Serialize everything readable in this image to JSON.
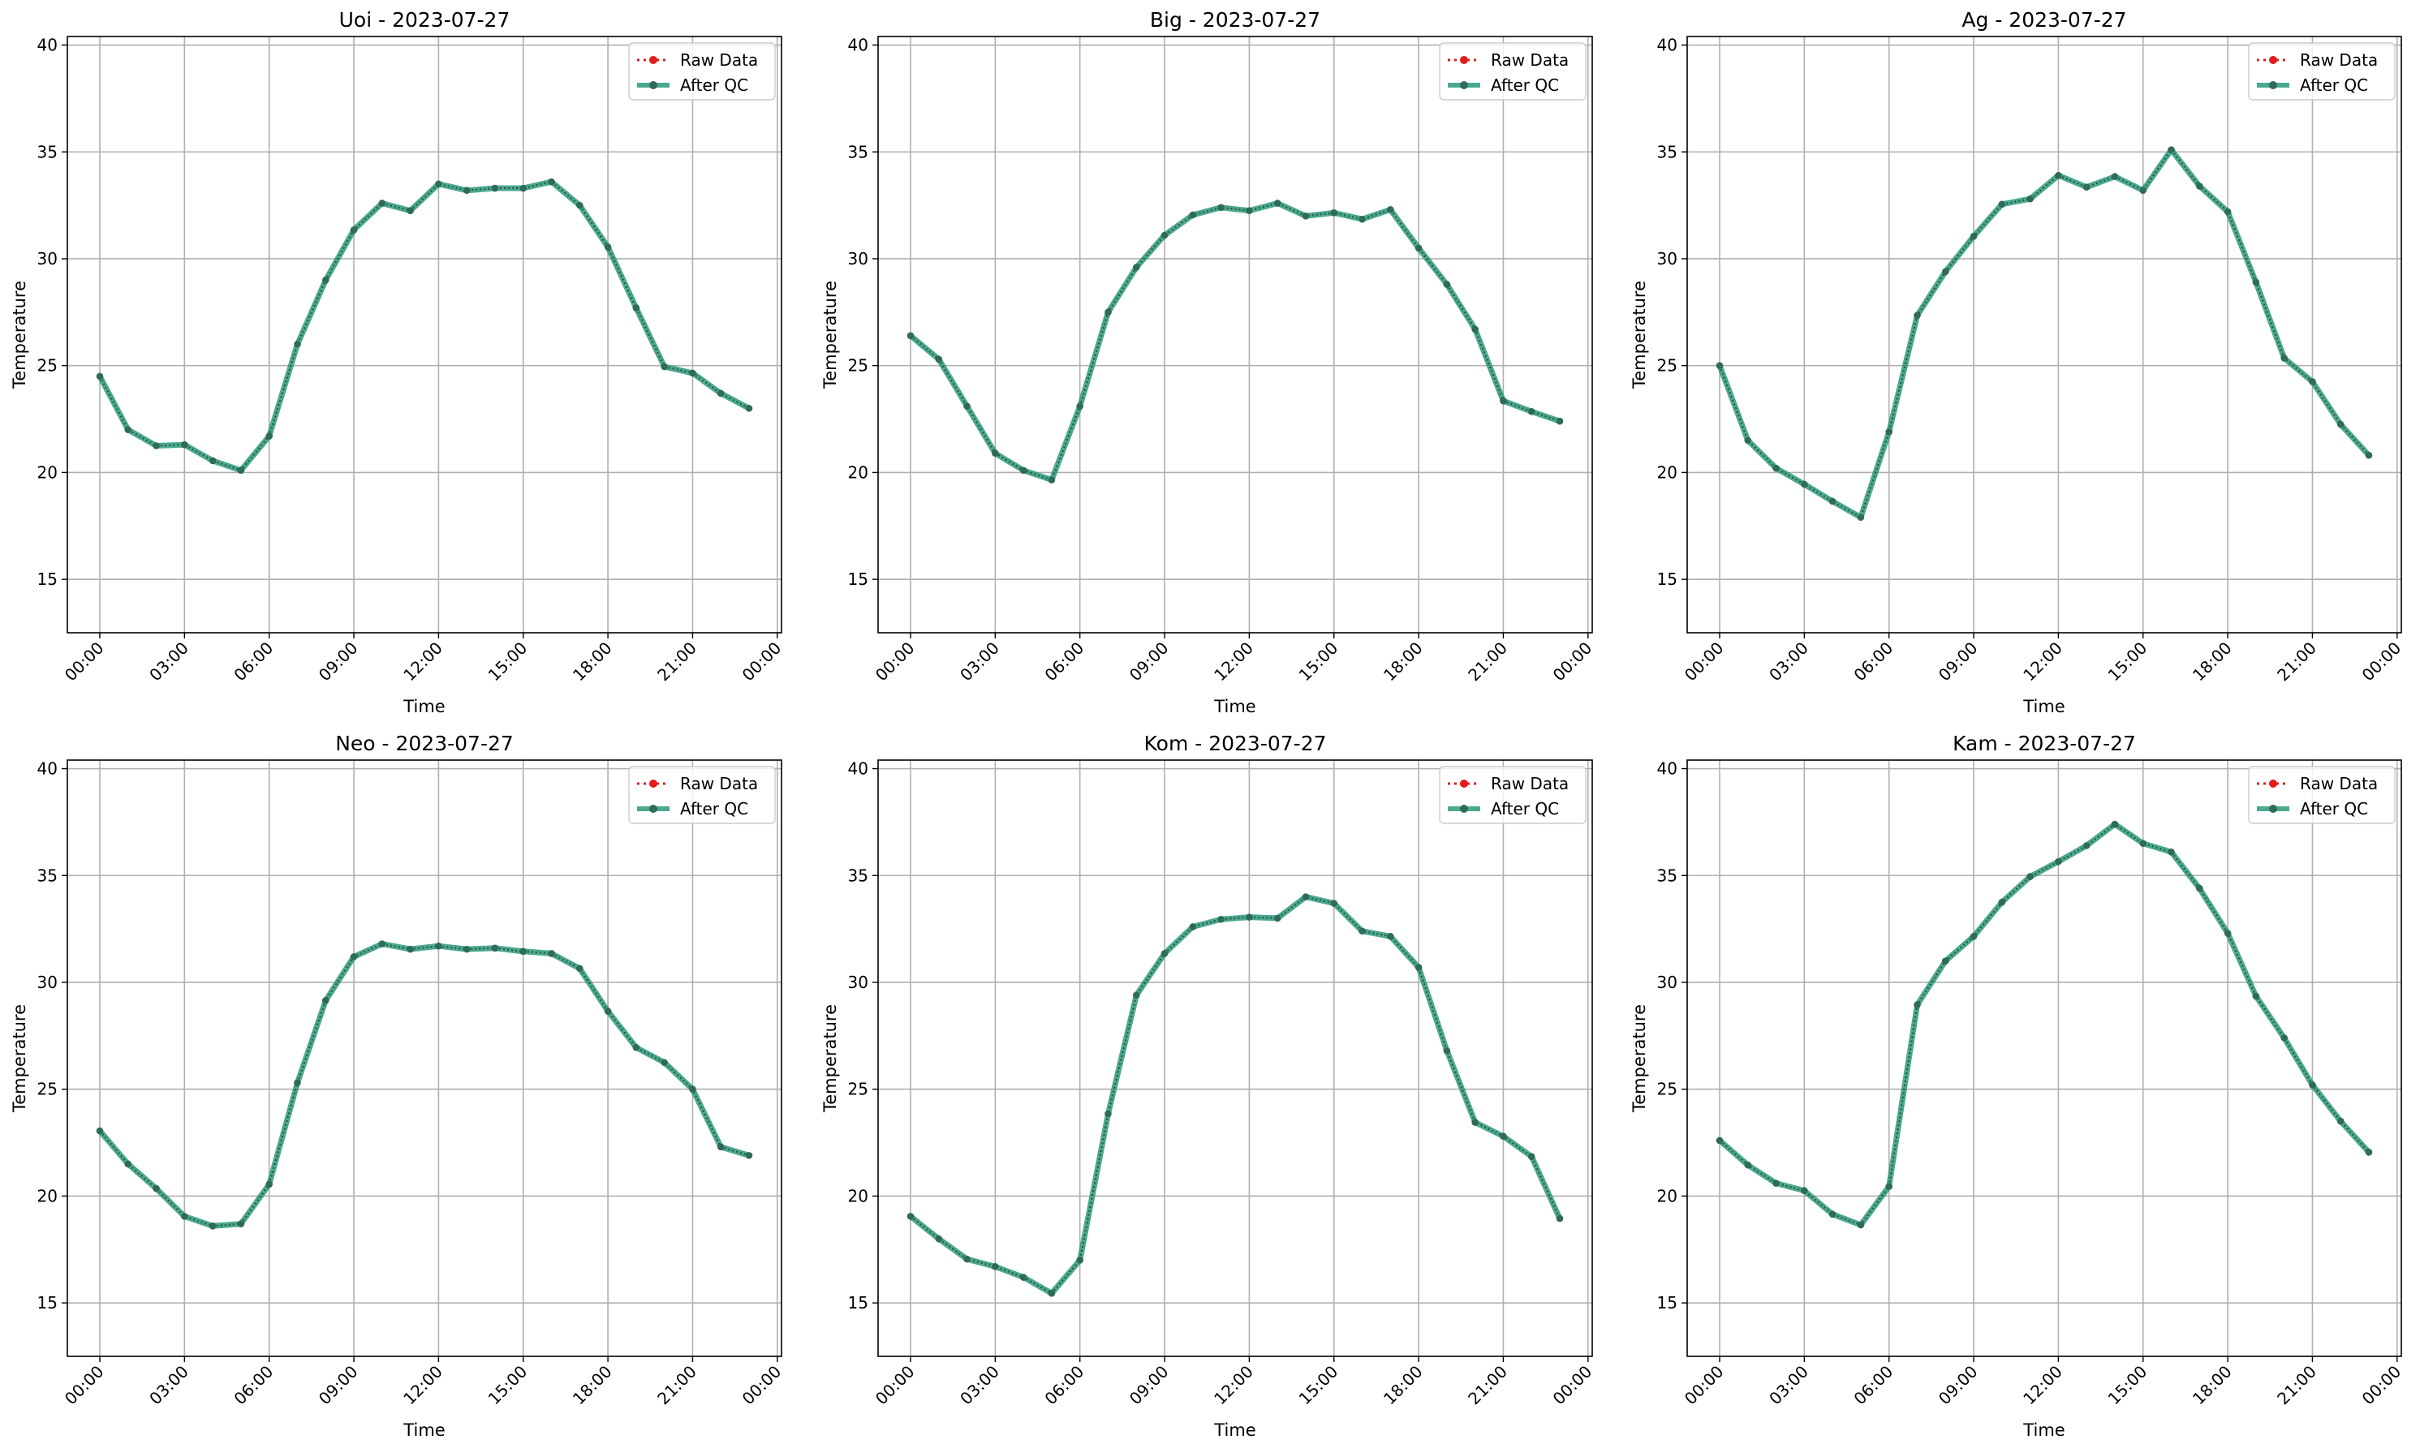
{
  "chart_data": [
    {
      "type": "line",
      "title": "Uoi - 2023-07-27",
      "xlabel": "Time",
      "ylabel": "Temperature",
      "x": [
        "00:00",
        "01:00",
        "02:00",
        "03:00",
        "04:00",
        "05:00",
        "06:00",
        "07:00",
        "08:00",
        "09:00",
        "10:00",
        "11:00",
        "12:00",
        "13:00",
        "14:00",
        "15:00",
        "16:00",
        "17:00",
        "18:00",
        "19:00",
        "20:00",
        "21:00",
        "22:00",
        "23:00"
      ],
      "xticks": [
        "00:00",
        "03:00",
        "06:00",
        "09:00",
        "12:00",
        "15:00",
        "18:00",
        "21:00",
        "00:00"
      ],
      "yticks": [
        15,
        20,
        25,
        30,
        35,
        40
      ],
      "ylim": [
        12.5,
        40.4
      ],
      "grid": true,
      "legend_position": "top-right",
      "series": [
        {
          "name": "Raw Data",
          "color": "#e41a1c",
          "values": [
            24.5,
            22.0,
            21.25,
            21.3,
            20.55,
            20.1,
            21.7,
            26.0,
            29.0,
            31.35,
            32.6,
            32.25,
            33.5,
            33.2,
            33.3,
            33.3,
            33.6,
            32.5,
            30.55,
            27.7,
            24.95,
            24.65,
            23.7,
            23.0
          ]
        },
        {
          "name": "After QC",
          "color": "#2a9a7a",
          "values": [
            24.5,
            22.0,
            21.25,
            21.3,
            20.55,
            20.1,
            21.7,
            26.0,
            29.0,
            31.35,
            32.6,
            32.25,
            33.5,
            33.2,
            33.3,
            33.3,
            33.6,
            32.5,
            30.55,
            27.7,
            24.95,
            24.65,
            23.7,
            23.0
          ]
        }
      ]
    },
    {
      "type": "line",
      "title": "Big - 2023-07-27",
      "xlabel": "Time",
      "ylabel": "Temperature",
      "x": [
        "00:00",
        "01:00",
        "02:00",
        "03:00",
        "04:00",
        "05:00",
        "06:00",
        "07:00",
        "08:00",
        "09:00",
        "10:00",
        "11:00",
        "12:00",
        "13:00",
        "14:00",
        "15:00",
        "16:00",
        "17:00",
        "18:00",
        "19:00",
        "20:00",
        "21:00",
        "22:00",
        "23:00"
      ],
      "xticks": [
        "00:00",
        "03:00",
        "06:00",
        "09:00",
        "12:00",
        "15:00",
        "18:00",
        "21:00",
        "00:00"
      ],
      "yticks": [
        15,
        20,
        25,
        30,
        35,
        40
      ],
      "ylim": [
        12.5,
        40.4
      ],
      "grid": true,
      "legend_position": "top-right",
      "series": [
        {
          "name": "Raw Data",
          "color": "#e41a1c",
          "values": [
            26.4,
            25.3,
            23.1,
            20.9,
            20.1,
            19.65,
            23.1,
            27.5,
            29.6,
            31.1,
            32.05,
            32.4,
            32.25,
            32.6,
            32.0,
            32.15,
            31.85,
            32.3,
            30.5,
            28.8,
            26.7,
            23.35,
            22.85,
            22.4
          ]
        },
        {
          "name": "After QC",
          "color": "#2a9a7a",
          "values": [
            26.4,
            25.3,
            23.1,
            20.9,
            20.1,
            19.65,
            23.1,
            27.5,
            29.6,
            31.1,
            32.05,
            32.4,
            32.25,
            32.6,
            32.0,
            32.15,
            31.85,
            32.3,
            30.5,
            28.8,
            26.7,
            23.35,
            22.85,
            22.4
          ]
        }
      ]
    },
    {
      "type": "line",
      "title": "Ag - 2023-07-27",
      "xlabel": "Time",
      "ylabel": "Temperature",
      "x": [
        "00:00",
        "01:00",
        "02:00",
        "03:00",
        "04:00",
        "05:00",
        "06:00",
        "07:00",
        "08:00",
        "09:00",
        "10:00",
        "11:00",
        "12:00",
        "13:00",
        "14:00",
        "15:00",
        "16:00",
        "17:00",
        "18:00",
        "19:00",
        "20:00",
        "21:00",
        "22:00",
        "23:00"
      ],
      "xticks": [
        "00:00",
        "03:00",
        "06:00",
        "09:00",
        "12:00",
        "15:00",
        "18:00",
        "21:00",
        "00:00"
      ],
      "yticks": [
        15,
        20,
        25,
        30,
        35,
        40
      ],
      "ylim": [
        12.5,
        40.4
      ],
      "grid": true,
      "legend_position": "top-right",
      "series": [
        {
          "name": "Raw Data",
          "color": "#e41a1c",
          "values": [
            25.0,
            21.5,
            20.2,
            19.45,
            18.65,
            17.9,
            21.9,
            27.35,
            29.4,
            31.05,
            32.55,
            32.8,
            33.9,
            33.35,
            33.85,
            33.2,
            35.1,
            33.4,
            32.2,
            28.9,
            25.35,
            24.25,
            22.25,
            20.8
          ]
        },
        {
          "name": "After QC",
          "color": "#2a9a7a",
          "values": [
            25.0,
            21.5,
            20.2,
            19.45,
            18.65,
            17.9,
            21.9,
            27.35,
            29.4,
            31.05,
            32.55,
            32.8,
            33.9,
            33.35,
            33.85,
            33.2,
            35.1,
            33.4,
            32.2,
            28.9,
            25.35,
            24.25,
            22.25,
            20.8
          ]
        }
      ]
    },
    {
      "type": "line",
      "title": "Neo - 2023-07-27",
      "xlabel": "Time",
      "ylabel": "Temperature",
      "x": [
        "00:00",
        "01:00",
        "02:00",
        "03:00",
        "04:00",
        "05:00",
        "06:00",
        "07:00",
        "08:00",
        "09:00",
        "10:00",
        "11:00",
        "12:00",
        "13:00",
        "14:00",
        "15:00",
        "16:00",
        "17:00",
        "18:00",
        "19:00",
        "20:00",
        "21:00",
        "22:00",
        "23:00"
      ],
      "xticks": [
        "00:00",
        "03:00",
        "06:00",
        "09:00",
        "12:00",
        "15:00",
        "18:00",
        "21:00",
        "00:00"
      ],
      "yticks": [
        15,
        20,
        25,
        30,
        35,
        40
      ],
      "ylim": [
        12.5,
        40.4
      ],
      "grid": true,
      "legend_position": "top-right",
      "series": [
        {
          "name": "Raw Data",
          "color": "#e41a1c",
          "values": [
            23.05,
            21.5,
            20.35,
            19.05,
            18.6,
            18.7,
            20.55,
            25.3,
            29.15,
            31.2,
            31.8,
            31.55,
            31.7,
            31.55,
            31.6,
            31.45,
            31.35,
            30.65,
            28.65,
            26.95,
            26.25,
            25.0,
            22.3,
            21.9
          ]
        },
        {
          "name": "After QC",
          "color": "#2a9a7a",
          "values": [
            23.05,
            21.5,
            20.35,
            19.05,
            18.6,
            18.7,
            20.55,
            25.3,
            29.15,
            31.2,
            31.8,
            31.55,
            31.7,
            31.55,
            31.6,
            31.45,
            31.35,
            30.65,
            28.65,
            26.95,
            26.25,
            25.0,
            22.3,
            21.9
          ]
        }
      ]
    },
    {
      "type": "line",
      "title": "Kom - 2023-07-27",
      "xlabel": "Time",
      "ylabel": "Temperature",
      "x": [
        "00:00",
        "01:00",
        "02:00",
        "03:00",
        "04:00",
        "05:00",
        "06:00",
        "07:00",
        "08:00",
        "09:00",
        "10:00",
        "11:00",
        "12:00",
        "13:00",
        "14:00",
        "15:00",
        "16:00",
        "17:00",
        "18:00",
        "19:00",
        "20:00",
        "21:00",
        "22:00",
        "23:00"
      ],
      "xticks": [
        "00:00",
        "03:00",
        "06:00",
        "09:00",
        "12:00",
        "15:00",
        "18:00",
        "21:00",
        "00:00"
      ],
      "yticks": [
        15,
        20,
        25,
        30,
        35,
        40
      ],
      "ylim": [
        12.5,
        40.4
      ],
      "grid": true,
      "legend_position": "top-right",
      "series": [
        {
          "name": "Raw Data",
          "color": "#e41a1c",
          "values": [
            19.05,
            18.0,
            17.05,
            16.7,
            16.2,
            15.45,
            17.0,
            23.85,
            29.4,
            31.35,
            32.6,
            32.95,
            33.05,
            33.0,
            34.0,
            33.7,
            32.4,
            32.15,
            30.7,
            26.8,
            23.45,
            22.8,
            21.85,
            18.95
          ]
        },
        {
          "name": "After QC",
          "color": "#2a9a7a",
          "values": [
            19.05,
            18.0,
            17.05,
            16.7,
            16.2,
            15.45,
            17.0,
            23.85,
            29.4,
            31.35,
            32.6,
            32.95,
            33.05,
            33.0,
            34.0,
            33.7,
            32.4,
            32.15,
            30.7,
            26.8,
            23.45,
            22.8,
            21.85,
            18.95
          ]
        }
      ]
    },
    {
      "type": "line",
      "title": "Kam - 2023-07-27",
      "xlabel": "Time",
      "ylabel": "Temperature",
      "x": [
        "00:00",
        "01:00",
        "02:00",
        "03:00",
        "04:00",
        "05:00",
        "06:00",
        "07:00",
        "08:00",
        "09:00",
        "10:00",
        "11:00",
        "12:00",
        "13:00",
        "14:00",
        "15:00",
        "16:00",
        "17:00",
        "18:00",
        "19:00",
        "20:00",
        "21:00",
        "22:00",
        "23:00"
      ],
      "xticks": [
        "00:00",
        "03:00",
        "06:00",
        "09:00",
        "12:00",
        "15:00",
        "18:00",
        "21:00",
        "00:00"
      ],
      "yticks": [
        15,
        20,
        25,
        30,
        35,
        40
      ],
      "ylim": [
        12.5,
        40.4
      ],
      "grid": true,
      "legend_position": "top-right",
      "series": [
        {
          "name": "Raw Data",
          "color": "#e41a1c",
          "values": [
            22.6,
            21.45,
            20.6,
            20.25,
            19.15,
            18.65,
            20.45,
            28.95,
            31.0,
            32.15,
            33.75,
            34.95,
            35.65,
            36.4,
            37.4,
            36.5,
            36.1,
            34.4,
            32.3,
            29.35,
            27.4,
            25.2,
            23.5,
            22.05
          ]
        },
        {
          "name": "After QC",
          "color": "#2a9a7a",
          "values": [
            22.6,
            21.45,
            20.6,
            20.25,
            19.15,
            18.65,
            20.45,
            28.95,
            31.0,
            32.15,
            33.75,
            34.95,
            35.65,
            36.4,
            37.4,
            36.5,
            36.1,
            34.4,
            32.3,
            29.35,
            27.4,
            25.2,
            23.5,
            22.05
          ]
        }
      ]
    }
  ]
}
